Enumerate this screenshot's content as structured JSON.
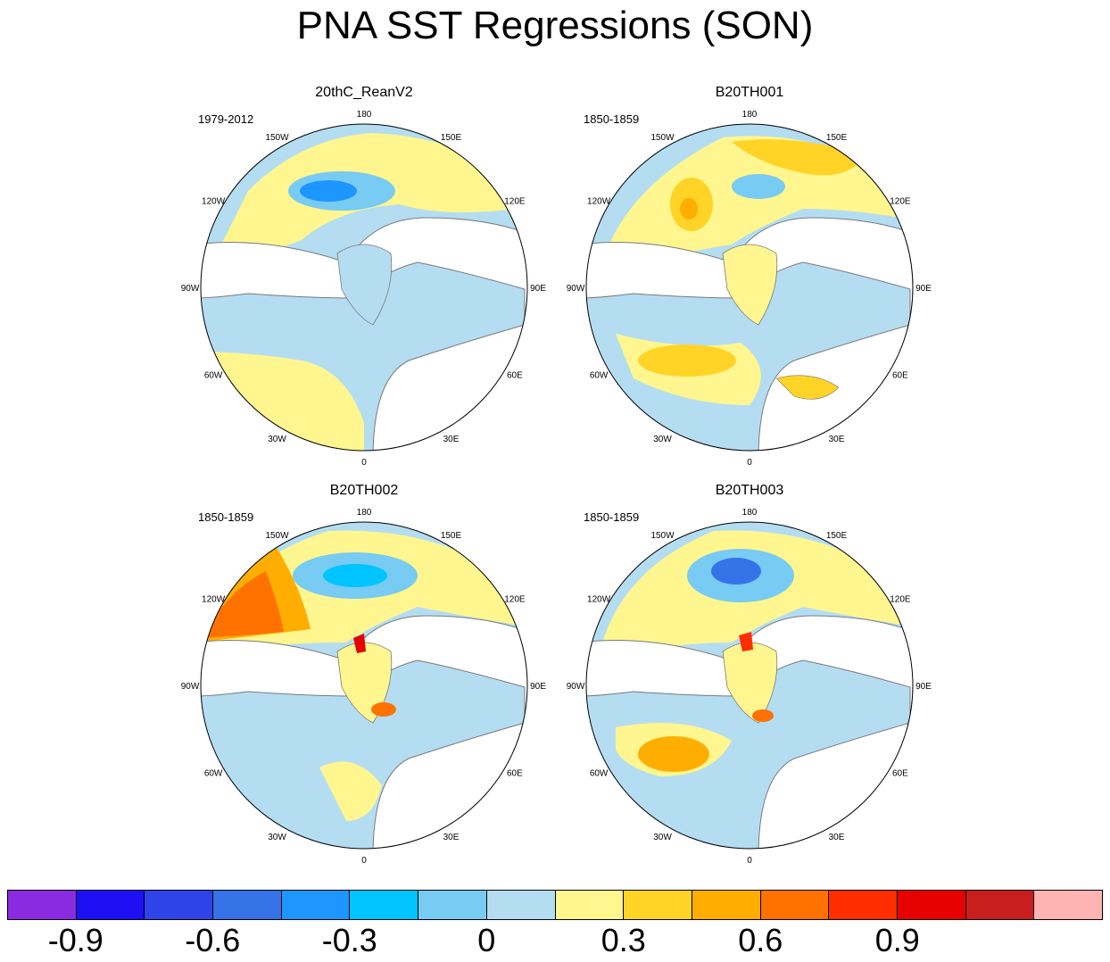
{
  "figure": {
    "title": "PNA SST Regressions (SON)"
  },
  "lon_labels": [
    "180",
    "150E",
    "120E",
    "90E",
    "60E",
    "30E",
    "0",
    "30W",
    "60W",
    "90W",
    "120W",
    "150W"
  ],
  "panels": [
    {
      "title": "20thC_ReanV2",
      "period": "1979-2012"
    },
    {
      "title": "B20TH001",
      "period": "1850-1859"
    },
    {
      "title": "B20TH002",
      "period": "1850-1859"
    },
    {
      "title": "B20TH003",
      "period": "1850-1859"
    }
  ],
  "colorbar": {
    "colors": [
      "#8a2be2",
      "#1e0ff5",
      "#2e44e8",
      "#3672e8",
      "#1e96ff",
      "#00c4ff",
      "#78cbf2",
      "#b4ddf2",
      "#fff68f",
      "#ffd427",
      "#ffae00",
      "#ff7200",
      "#ff2d00",
      "#e60000",
      "#c81e1e",
      "#ffb4b4"
    ],
    "tick_labels": [
      "-0.9",
      "-0.6",
      "-0.3",
      "0",
      "0.3",
      "0.6",
      "0.9"
    ],
    "tick_boundaries": [
      1,
      3,
      5,
      7,
      9,
      11,
      13
    ]
  }
}
